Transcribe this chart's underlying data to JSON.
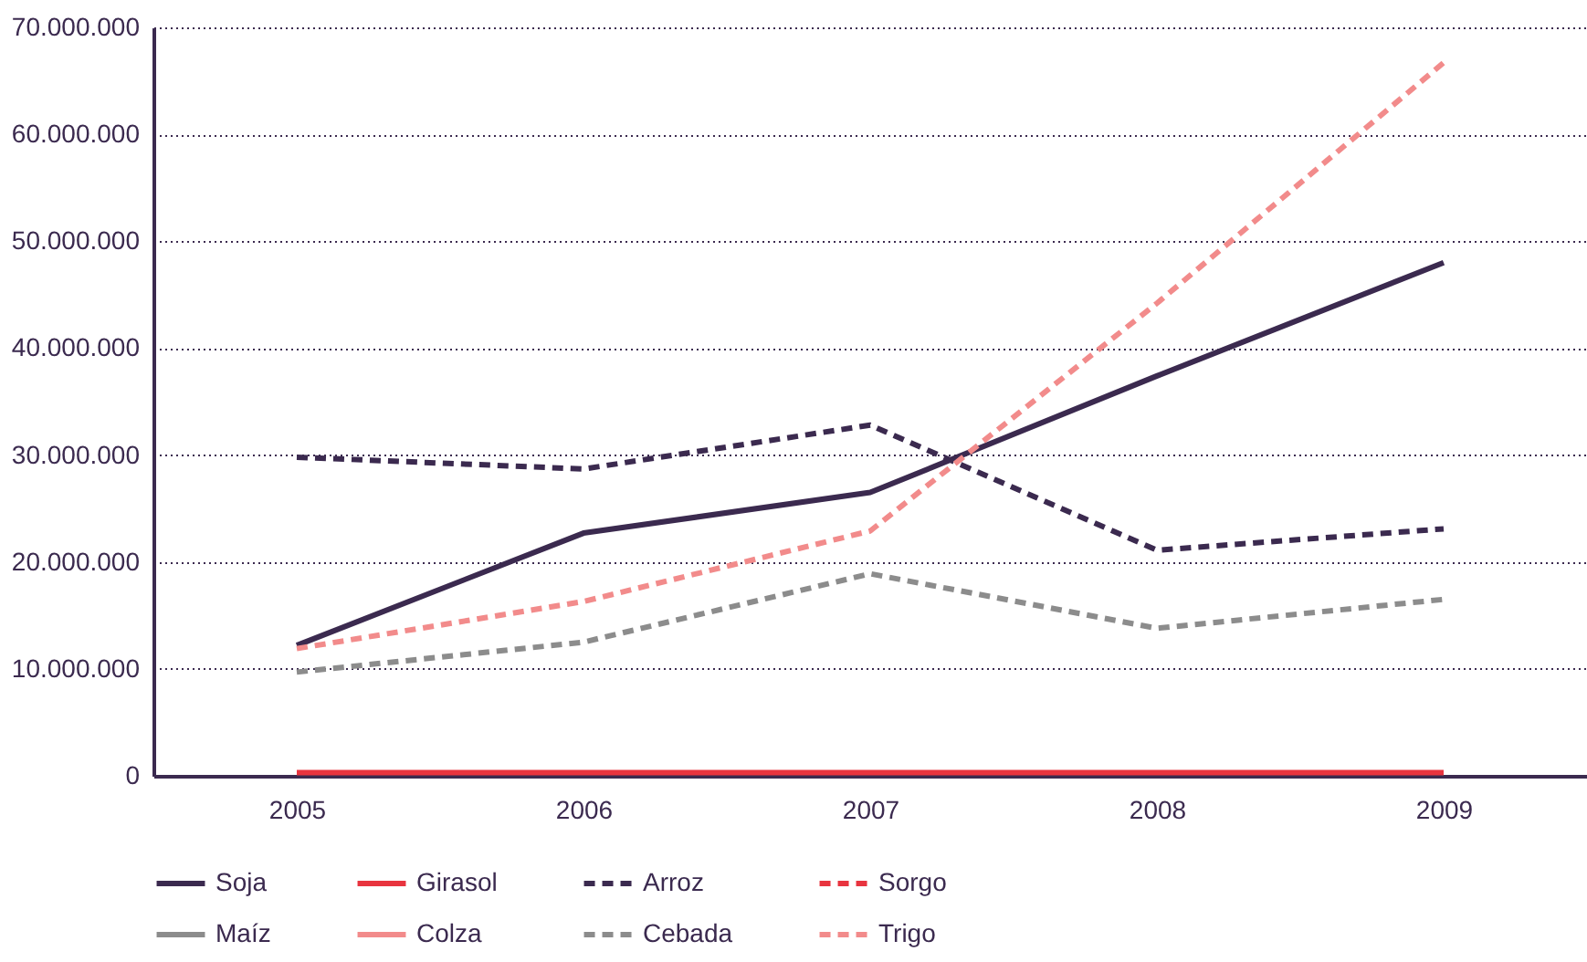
{
  "chart_data": {
    "type": "line",
    "categories": [
      "2005",
      "2006",
      "2007",
      "2008",
      "2009"
    ],
    "series": [
      {
        "name": "Soja",
        "color": "#3b2a4f",
        "line_style": "solid",
        "values": [
          12200000,
          22700000,
          26500000,
          37400000,
          48000000
        ]
      },
      {
        "name": "Girasol",
        "color": "#e8343f",
        "line_style": "solid",
        "values": [
          300000,
          300000,
          300000,
          300000,
          300000
        ]
      },
      {
        "name": "Arroz",
        "color": "#3b2a4f",
        "line_style": "dashed",
        "values": [
          29800000,
          28700000,
          32800000,
          21100000,
          23100000
        ]
      },
      {
        "name": "Sorgo",
        "color": "#e8343f",
        "line_style": "dashed",
        "values": [
          null,
          null,
          null,
          null,
          null
        ]
      },
      {
        "name": "Maíz",
        "color": "#8c8c8c",
        "line_style": "solid",
        "values": [
          null,
          null,
          null,
          null,
          null
        ]
      },
      {
        "name": "Colza",
        "color": "#f28b8b",
        "line_style": "solid",
        "values": [
          null,
          null,
          null,
          null,
          null
        ]
      },
      {
        "name": "Cebada",
        "color": "#8c8c8c",
        "line_style": "dashed",
        "values": [
          9700000,
          12500000,
          18900000,
          13800000,
          16500000
        ]
      },
      {
        "name": "Trigo",
        "color": "#f28b8b",
        "line_style": "dashed",
        "values": [
          11900000,
          16300000,
          22900000,
          44200000,
          66700000
        ]
      }
    ],
    "ylim": [
      0,
      70000000
    ],
    "yticks": [
      {
        "value": 0,
        "label": "0"
      },
      {
        "value": 10000000,
        "label": "10.000.000"
      },
      {
        "value": 20000000,
        "label": "20.000.000"
      },
      {
        "value": 30000000,
        "label": "30.000.000"
      },
      {
        "value": 40000000,
        "label": "40.000.000"
      },
      {
        "value": 50000000,
        "label": "50.000.000"
      },
      {
        "value": 60000000,
        "label": "60.000.000"
      },
      {
        "value": 70000000,
        "label": "70.000.000"
      }
    ],
    "grid": "y",
    "legend": "bottom",
    "marker": "none"
  }
}
